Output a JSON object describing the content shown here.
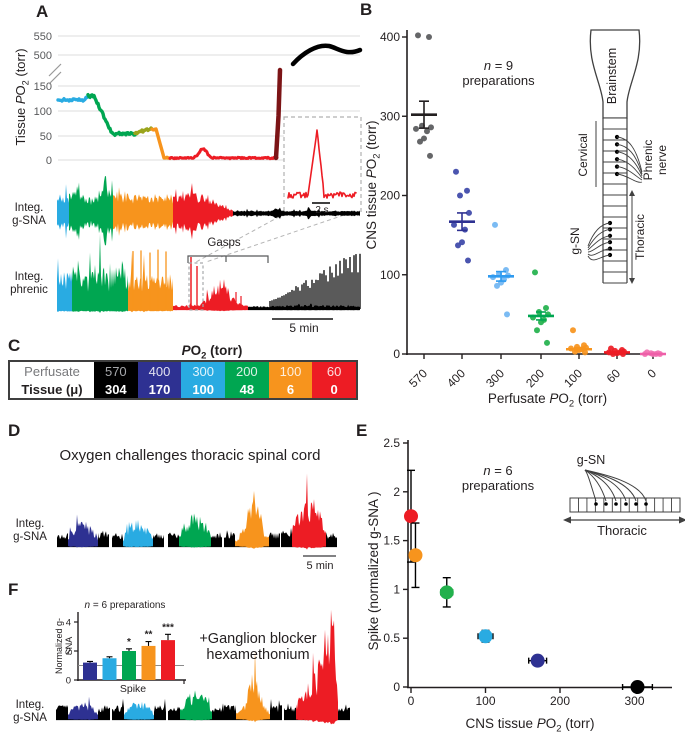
{
  "figure": {
    "background": "#ffffff"
  },
  "colors": {
    "navy": "#2e3192",
    "cyan": "#29abe2",
    "green": "#00a651",
    "orange": "#f7941d",
    "red": "#ed1c24",
    "dark_red": "#7c1416",
    "olive": "#9aa41c",
    "black": "#000000",
    "gray_point": "#58595b",
    "indigo": "#3c46a8",
    "sky_blue": "#70b5f2",
    "bright_green": "#22b14c",
    "pink": "#f272b2"
  },
  "panels": {
    "a": {
      "label": "A",
      "y_axis_label": "Tissue PO2 (torr)",
      "y_ticks_upper": [
        "550",
        "500"
      ],
      "y_ticks_lower": [
        "150",
        "100",
        "50",
        "0"
      ],
      "trace1_label_line1": "Integ.",
      "trace1_label_line2": "g-SNA",
      "trace2_label_line1": "Integ.",
      "trace2_label_line2": "phrenic",
      "gasps_label": "Gasps",
      "scalebar_label": "5 min",
      "inset_scalebar_label": "2 s"
    },
    "b": {
      "label": "B",
      "annotation_line1": "n = 9",
      "annotation_line2": "preparations",
      "y_axis_label": "CNS tissue PO2 (torr)",
      "x_axis_label": "Perfusate PO2 (torr)",
      "diagram": {
        "brainstem": "Brainstem",
        "cervical": "Cervical",
        "phrenic_line1": "Phrenic",
        "phrenic_line2": "nerve",
        "gsn": "g-SN",
        "thoracic": "Thoracic"
      }
    },
    "c": {
      "label": "C",
      "header": "PO2 (torr)",
      "row1_label": "Perfusate",
      "row2_label": "Tissue (μ)",
      "columns": [
        {
          "perfusate": "570",
          "tissue": "304",
          "color": "#000000"
        },
        {
          "perfusate": "400",
          "tissue": "170",
          "color": "#2e3192"
        },
        {
          "perfusate": "300",
          "tissue": "100",
          "color": "#29abe2"
        },
        {
          "perfusate": "200",
          "tissue": "48",
          "color": "#00a651"
        },
        {
          "perfusate": "100",
          "tissue": "6",
          "color": "#f7941d"
        },
        {
          "perfusate": "60",
          "tissue": "0",
          "color": "#ed1c24"
        }
      ]
    },
    "d": {
      "label": "D",
      "title": "Oxygen challenges thoracic spinal cord",
      "trace_label_line1": "Integ.",
      "trace_label_line2": "g-SNA",
      "scalebar_label": "5 min",
      "trace_colors": [
        "#2e3192",
        "#29abe2",
        "#00a651",
        "#f7941d",
        "#ed1c24"
      ]
    },
    "e": {
      "label": "E",
      "annotation_line1": "n = 6",
      "annotation_line2": "preparations",
      "y_axis_label": "Spike (normalized g-SNA )",
      "x_axis_label": "CNS tissue PO2 (torr)",
      "diagram": {
        "gsn": "g-SN",
        "thoracic": "Thoracic"
      }
    },
    "f": {
      "label": "F",
      "inset_title": "n = 6 preparations",
      "inset_y_label": "Normalized g-SNA",
      "inset_x_label": "Spike",
      "blocker_line1": "+Ganglion blocker",
      "blocker_line2": "hexamethonium",
      "trace_label_line1": "Integ.",
      "trace_label_line2": "g-SNA",
      "trace_colors": [
        "#2e3192",
        "#29abe2",
        "#00a651",
        "#f7941d",
        "#ed1c24"
      ]
    }
  },
  "chart_data": [
    {
      "id": "A_tissue_po2",
      "type": "line",
      "ylabel": "Tissue PO2 (torr)",
      "y_ticks": [
        0,
        50,
        100,
        150,
        500,
        550
      ],
      "axis_break_between": [
        150,
        500
      ],
      "segments": [
        {
          "color": "#29abe2",
          "tissue_po2": 122
        },
        {
          "color": "#00a651",
          "tissue_po2": 55
        },
        {
          "color": "#9aa41c",
          "tissue_po2": 63
        },
        {
          "color": "#f7941d",
          "tissue_po2": 3
        },
        {
          "color": "#ed1c24",
          "tissue_po2": 3,
          "gasp_bump": 22
        },
        {
          "color": "#7c1416",
          "tissue_po2": 160
        },
        {
          "color": "#000000",
          "tissue_po2": 510
        }
      ],
      "annotations": [
        "Gasps"
      ],
      "scalebars": [
        "5 min",
        "2 s"
      ]
    },
    {
      "id": "B_scatter",
      "type": "scatter",
      "annotation": "n = 9 preparations",
      "xlabel": "Perfusate PO2 (torr)",
      "ylabel": "CNS tissue PO2 (torr)",
      "ylim": [
        0,
        400
      ],
      "yticks": [
        0,
        100,
        200,
        300,
        400
      ],
      "categories": [
        "570",
        "400",
        "300",
        "200",
        "100",
        "60",
        "0"
      ],
      "series": [
        {
          "category": "570",
          "color": "#58595b",
          "bar_color": "#231f20",
          "mean": 302,
          "sem": 17,
          "points": [
            402,
            400,
            288,
            286,
            284,
            281,
            272,
            268,
            250
          ]
        },
        {
          "category": "400",
          "color": "#3c46a8",
          "bar_color": "#2e3192",
          "mean": 167,
          "sem": 11,
          "points": [
            230,
            206,
            200,
            178,
            163,
            157,
            141,
            137,
            118
          ]
        },
        {
          "category": "300",
          "color": "#70b5f2",
          "bar_color": "#2f9bf0",
          "mean": 98,
          "sem": 6,
          "points": [
            163,
            106,
            101,
            99,
            97,
            94,
            90,
            86,
            50
          ]
        },
        {
          "category": "200",
          "color": "#22b14c",
          "bar_color": "#00a651",
          "mean": 48,
          "sem": 5,
          "points": [
            103,
            58,
            53,
            50,
            46,
            43,
            40,
            30,
            14
          ]
        },
        {
          "category": "100",
          "color": "#f7941d",
          "bar_color": "#f7941d",
          "mean": 6,
          "sem": 2,
          "points": [
            30,
            11,
            9,
            8,
            7,
            6,
            5,
            3,
            2
          ]
        },
        {
          "category": "60",
          "color": "#ed1c24",
          "bar_color": "#ed1c24",
          "mean": 2,
          "sem": 1,
          "points": [
            7,
            5,
            4,
            3,
            2,
            2,
            1,
            0,
            0
          ]
        },
        {
          "category": "0",
          "color": "#f272b2",
          "bar_color": "#ee5fa8",
          "mean": 0,
          "sem": 0.5,
          "points": [
            2,
            1,
            1,
            0,
            0,
            0,
            0
          ]
        }
      ]
    },
    {
      "id": "E_scatter",
      "type": "scatter",
      "annotation": "n = 6 preparations",
      "xlabel": "CNS tissue PO2 (torr)",
      "ylabel": "Spike (normalized g-SNA )",
      "xlim": [
        0,
        340
      ],
      "xticks": [
        0,
        100,
        200,
        300
      ],
      "ylim": [
        0,
        2.5
      ],
      "yticks": [
        0,
        0.5,
        1,
        1.5,
        2,
        2.5
      ],
      "points": [
        {
          "x": 0,
          "y": 1.75,
          "xerr": 4,
          "yerr": 0.47,
          "color": "#ed1c24"
        },
        {
          "x": 6,
          "y": 1.35,
          "xerr": 4,
          "yerr": 0.33,
          "color": "#f7941d"
        },
        {
          "x": 48,
          "y": 0.97,
          "xerr": 8,
          "yerr": 0.15,
          "color": "#22b14c"
        },
        {
          "x": 100,
          "y": 0.52,
          "xerr": 10,
          "yerr": 0.06,
          "color": "#29abe2"
        },
        {
          "x": 170,
          "y": 0.27,
          "xerr": 12,
          "yerr": 0.05,
          "color": "#2e3192"
        },
        {
          "x": 304,
          "y": 0.0,
          "xerr": 20,
          "yerr": 0.03,
          "color": "#000000"
        }
      ]
    },
    {
      "id": "F_inset_bar",
      "type": "bar",
      "annotation": "n = 6 preparations",
      "ylabel": "Normalized g-SNA",
      "xlabel": "Spike",
      "yticks": [
        0,
        2,
        4
      ],
      "reference_line": 1,
      "bars": [
        {
          "value": 1.2,
          "err": 0.08,
          "sig": "",
          "color": "#2e3192"
        },
        {
          "value": 1.5,
          "err": 0.1,
          "sig": "",
          "color": "#29abe2"
        },
        {
          "value": 2.0,
          "err": 0.15,
          "sig": "*",
          "color": "#00a651"
        },
        {
          "value": 2.35,
          "err": 0.3,
          "sig": "**",
          "color": "#f7941d"
        },
        {
          "value": 2.75,
          "err": 0.4,
          "sig": "***",
          "color": "#ed1c24"
        }
      ]
    }
  ]
}
